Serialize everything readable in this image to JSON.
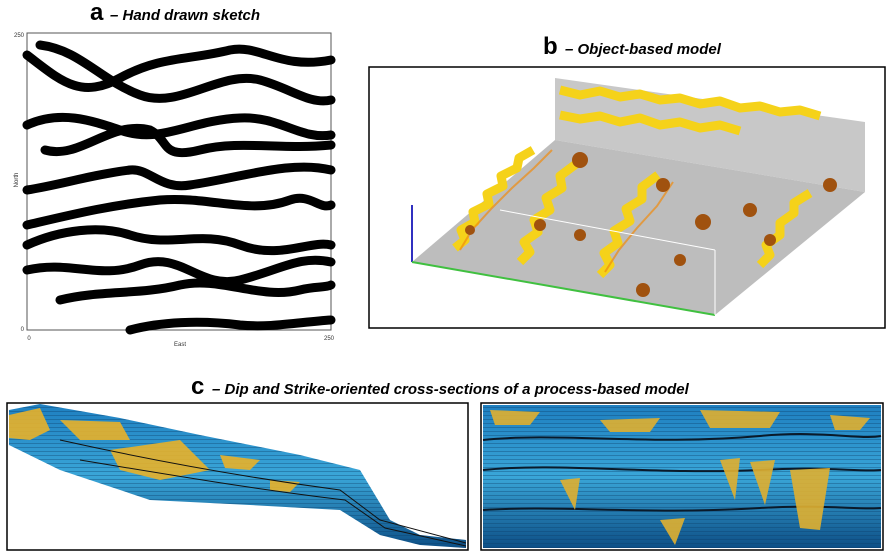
{
  "panels": [
    {
      "letter": "a",
      "title": "– Hand drawn sketch",
      "y_axis_label": "North",
      "x_axis_label": "East",
      "y_ticks": [
        "250",
        "0"
      ],
      "x_ticks": [
        "0",
        "250"
      ]
    },
    {
      "letter": "b",
      "title": "– Object-based model"
    },
    {
      "letter": "c",
      "title": "– Dip and Strike-oriented cross-sections of a process-based model"
    }
  ]
}
